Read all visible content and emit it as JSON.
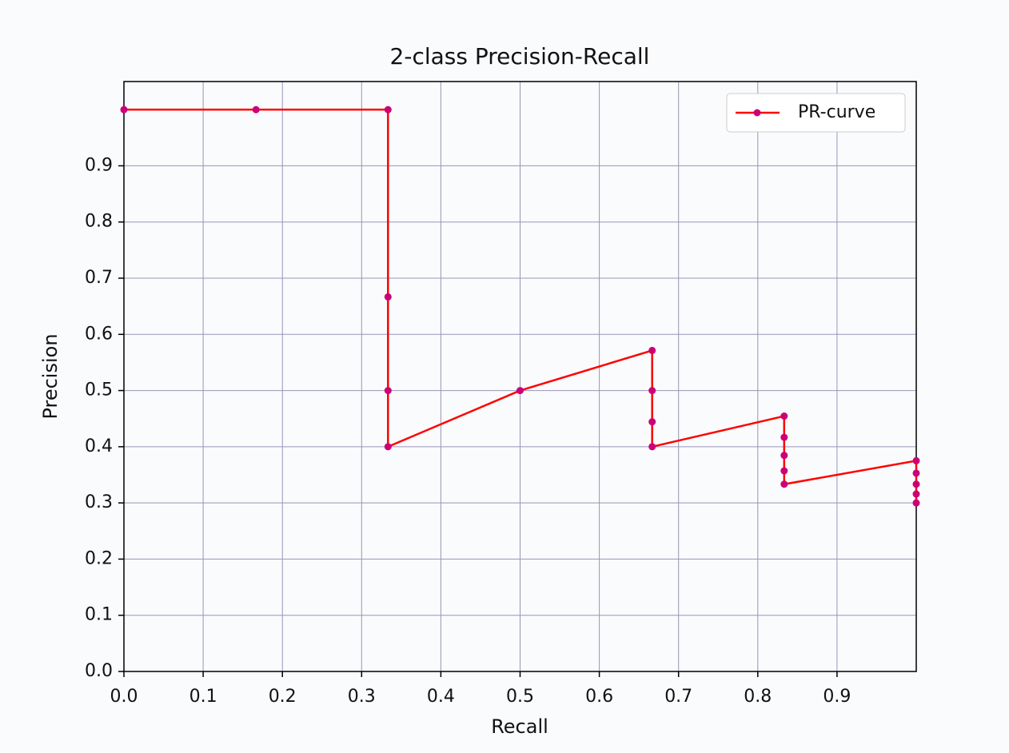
{
  "chart_data": {
    "type": "line",
    "title": "2-class Precision-Recall",
    "xlabel": "Recall",
    "ylabel": "Precision",
    "x": [
      0,
      0.1667,
      0.3333,
      0.3333,
      0.3333,
      0.3333,
      0.5,
      0.6667,
      0.6667,
      0.6667,
      0.6667,
      0.8333,
      0.8333,
      0.8333,
      0.8333,
      0.8333,
      1,
      1,
      1,
      1,
      1
    ],
    "series": [
      {
        "name": "PR-curve",
        "color": "#ff0000",
        "marker_color": "#cc0077",
        "values": [
          1,
          1,
          1,
          0.6667,
          0.5,
          0.4,
          0.5,
          0.5714,
          0.5,
          0.4444,
          0.4,
          0.4545,
          0.4167,
          0.3846,
          0.3571,
          0.3333,
          0.375,
          0.3529,
          0.3333,
          0.3158,
          0.3
        ]
      }
    ],
    "xlim": [
      0,
      1
    ],
    "ylim": [
      0,
      1.05
    ],
    "xticks": [
      {
        "value": 0,
        "label": "0.0"
      },
      0.1,
      0.2,
      0.3,
      0.4,
      0.5,
      0.6,
      0.7,
      0.8,
      0.9
    ],
    "yticks": [
      {
        "value": 0,
        "label": "0.0"
      },
      0.1,
      0.2,
      0.3,
      0.4,
      0.5,
      0.6,
      0.7,
      0.8,
      0.9
    ],
    "grid": true,
    "grid_color": "#9a94b8",
    "legend": "upper right"
  }
}
